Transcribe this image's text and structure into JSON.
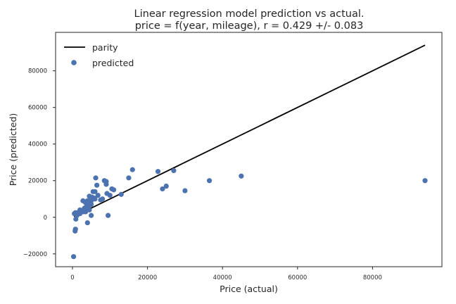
{
  "chart_data": {
    "type": "scatter",
    "title": "Linear regression model prediction vs actual.",
    "subtitle": "price = f(year, mileage), r = 0.429 +/- 0.083",
    "xlabel": "Price (actual)",
    "ylabel": "Price (predicted)",
    "xlim": [
      -4500,
      98500
    ],
    "ylim": [
      -27000,
      101000
    ],
    "x_ticks": [
      0,
      20000,
      40000,
      60000,
      80000
    ],
    "y_ticks": [
      -20000,
      0,
      20000,
      40000,
      60000,
      80000
    ],
    "x_tick_labels": [
      "0",
      "20000",
      "40000",
      "60000",
      "80000"
    ],
    "y_tick_labels": [
      "−20000",
      "0",
      "20000",
      "40000",
      "60000",
      "80000"
    ],
    "grid": false,
    "legend": {
      "position": "top-left",
      "entries": [
        "parity",
        "predicted"
      ]
    },
    "series": [
      {
        "name": "parity",
        "kind": "line",
        "color": "#000000",
        "x": [
          400,
          94000
        ],
        "y": [
          400,
          94000
        ]
      },
      {
        "name": "predicted",
        "kind": "scatter",
        "color": "#4c72b0",
        "x": [
          300,
          500,
          800,
          1000,
          1200,
          1500,
          2000,
          2500,
          2800,
          3000,
          3200,
          3500,
          3500,
          3800,
          4000,
          4000,
          4200,
          4500,
          4500,
          4800,
          5000,
          5000,
          5200,
          5500,
          5800,
          6000,
          6000,
          6200,
          6500,
          6800,
          7500,
          8000,
          8500,
          9000,
          9000,
          9200,
          9500,
          10000,
          10500,
          11000,
          13000,
          15000,
          16000,
          22800,
          24000,
          25000,
          27000,
          30000,
          36500,
          45000,
          94000,
          700,
          800,
          900,
          1500,
          2000,
          4000,
          5000,
          3000,
          4500
        ],
        "y": [
          -21500,
          2000,
          2500,
          2000,
          1000,
          2500,
          2000,
          3000,
          9000,
          3000,
          5000,
          3000,
          8000,
          6000,
          9000,
          -3000,
          5000,
          4000,
          11500,
          9000,
          7000,
          1000,
          11000,
          14000,
          10500,
          14000,
          10000,
          21500,
          17500,
          12000,
          9500,
          10000,
          20000,
          19500,
          18000,
          13000,
          1000,
          12000,
          15500,
          15000,
          12500,
          21500,
          26000,
          25000,
          15500,
          17000,
          25500,
          14500,
          20000,
          22500,
          20000,
          -7500,
          -6500,
          -1000,
          2500,
          4000,
          7000,
          9000,
          4000,
          6500
        ]
      }
    ]
  }
}
